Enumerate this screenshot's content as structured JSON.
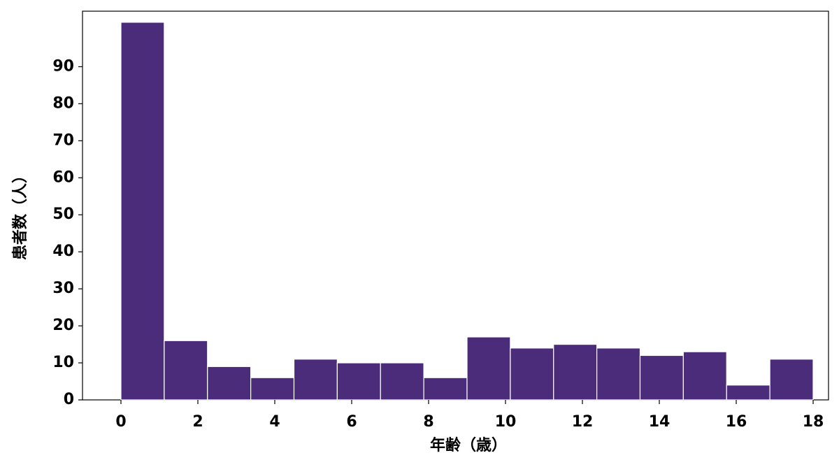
{
  "chart_data": {
    "type": "histogram",
    "xlabel": "年齢（歳）",
    "ylabel": "患者数（人）",
    "bins": [
      0,
      1.125,
      2.25,
      3.375,
      4.5,
      5.625,
      6.75,
      7.875,
      9,
      10.125,
      11.25,
      12.375,
      13.5,
      14.625,
      15.75,
      16.875,
      18
    ],
    "values": [
      102,
      16,
      9,
      6,
      11,
      10,
      10,
      6,
      17,
      14,
      15,
      14,
      12,
      13,
      4,
      11
    ],
    "color": "#4b2c7b",
    "xlim": [
      -1,
      18.4
    ],
    "ylim": [
      0,
      105
    ],
    "xticks": [
      0,
      2,
      4,
      6,
      8,
      10,
      12,
      14,
      16,
      18
    ],
    "yticks": [
      0,
      10,
      20,
      30,
      40,
      50,
      60,
      70,
      80,
      90
    ]
  }
}
